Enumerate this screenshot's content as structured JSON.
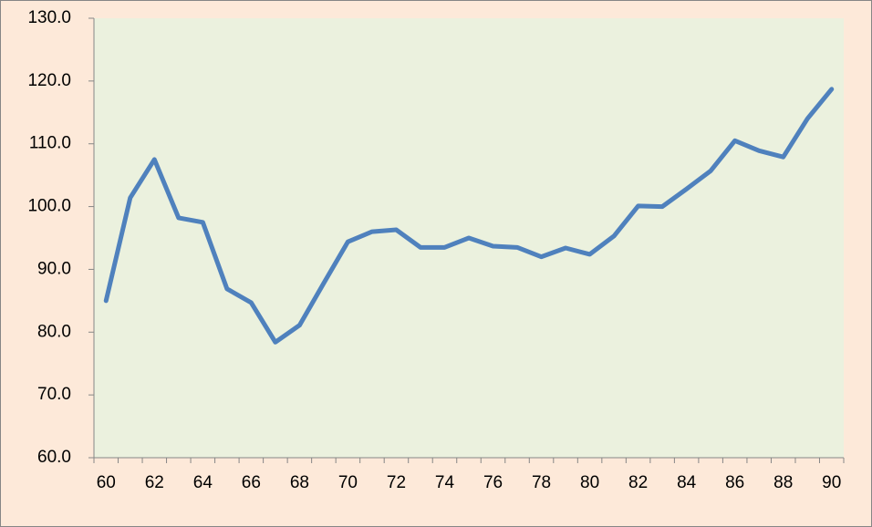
{
  "chart_data": {
    "type": "line",
    "categories": [
      "60",
      null,
      "62",
      null,
      "64",
      null,
      "66",
      null,
      "68",
      null,
      "70",
      null,
      "72",
      null,
      "74",
      null,
      "76",
      null,
      "78",
      null,
      "80",
      null,
      "82",
      null,
      "84",
      null,
      "86",
      null,
      "88",
      null,
      "90"
    ],
    "series": [
      {
        "color": "#4f81bd",
        "values": [
          85.0,
          101.4,
          107.5,
          98.2,
          97.5,
          86.9,
          84.7,
          78.4,
          81.1,
          87.8,
          94.4,
          96.0,
          96.3,
          93.5,
          93.5,
          95.0,
          93.7,
          93.5,
          92.0,
          93.4,
          92.4,
          95.3,
          100.1,
          100.0,
          102.8,
          105.7,
          110.5,
          108.9,
          107.9,
          114.0,
          118.7
        ]
      }
    ],
    "ylim": [
      60,
      130
    ],
    "yticks": [
      {
        "value": 60,
        "label": "60.0"
      },
      {
        "value": 70,
        "label": "70.0"
      },
      {
        "value": 80,
        "label": "80.0"
      },
      {
        "value": 90,
        "label": "90.0"
      },
      {
        "value": 100,
        "label": "100.0"
      },
      {
        "value": 110,
        "label": "110.0"
      },
      {
        "value": 120,
        "label": "120.0"
      },
      {
        "value": 130,
        "label": "130.0"
      }
    ],
    "grid": false
  }
}
